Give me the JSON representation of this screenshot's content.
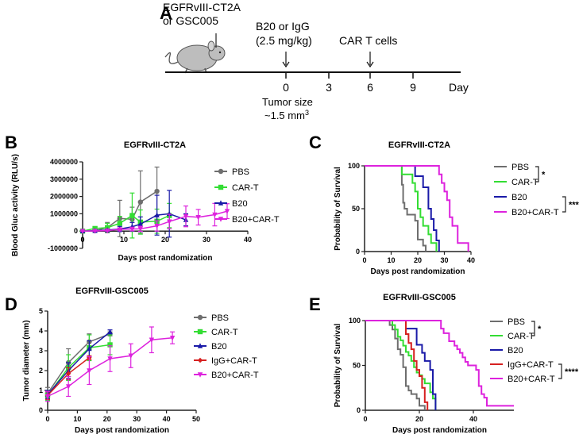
{
  "panel_a": {
    "label": "A",
    "tumor_line1": "EGFRvIII-CT2A",
    "tumor_line2": "or GSC005",
    "treat1_line1": "B20 or IgG",
    "treat1_line2": "(2.5 mg/kg)",
    "treat2": "CAR T cells",
    "ticks": [
      "0",
      "3",
      "6",
      "9"
    ],
    "day_label": "Day",
    "size_line1": "Tumor size",
    "size_line2": "~1.5 mm",
    "size_sup": "3"
  },
  "colors": {
    "PBS": "#6e6e6e",
    "CAR-T": "#33dd33",
    "B20": "#1a1aa8",
    "IgG+CAR-T": "#d62020",
    "B20+CAR-T": "#dd22dd"
  },
  "chart_data": [
    {
      "panel": "B",
      "type": "line",
      "title": "EGFRvIII-CT2A",
      "xlabel": "Days post randomization",
      "ylabel": "Blood Gluc activity (RLU/s)",
      "xlim": [
        0,
        40
      ],
      "ylim": [
        -1000000,
        4000000
      ],
      "xticks": [
        "0",
        "10",
        "20",
        "30",
        "40"
      ],
      "yticks": [
        "-1000000",
        "0",
        "1000000",
        "2000000",
        "3000000",
        "4000000"
      ],
      "legend_position": "right",
      "series": [
        {
          "name": "PBS",
          "marker": "circle",
          "x": [
            0,
            3,
            6,
            9,
            12,
            14,
            18
          ],
          "y": [
            0,
            20000,
            200000,
            730000,
            680000,
            1680000,
            2300000
          ],
          "err": [
            20000,
            80000,
            300000,
            1050000,
            700000,
            1800000,
            1400000
          ]
        },
        {
          "name": "CAR-T",
          "marker": "square",
          "x": [
            0,
            3,
            6,
            9,
            12,
            14,
            18,
            21
          ],
          "y": [
            0,
            150000,
            200000,
            450000,
            900000,
            520000,
            570000,
            900000
          ],
          "err": [
            20000,
            100000,
            250000,
            400000,
            1300000,
            700000,
            700000,
            700000
          ]
        },
        {
          "name": "B20",
          "marker": "triangle-up",
          "x": [
            0,
            3,
            6,
            9,
            12,
            14,
            18,
            21,
            25
          ],
          "y": [
            0,
            20000,
            60000,
            120000,
            250000,
            400000,
            920000,
            1000000,
            650000
          ],
          "err": [
            20000,
            40000,
            60000,
            150000,
            250000,
            420000,
            1150000,
            1350000,
            350000
          ]
        },
        {
          "name": "B20+CAR-T",
          "marker": "triangle-down",
          "x": [
            0,
            3,
            6,
            9,
            12,
            14,
            18,
            21,
            25,
            28,
            32,
            35
          ],
          "y": [
            0,
            10000,
            30000,
            100000,
            120000,
            130000,
            300000,
            550000,
            850000,
            800000,
            950000,
            1150000
          ],
          "err": [
            10000,
            20000,
            30000,
            80000,
            100000,
            150000,
            300000,
            420000,
            600000,
            450000,
            650000,
            430000
          ]
        }
      ]
    },
    {
      "panel": "C",
      "type": "line",
      "subtype": "kaplan-meier",
      "title": "EGFRvIII-CT2A",
      "xlabel": "Days post randomization",
      "ylabel": "Probability of Survival",
      "xlim": [
        0,
        40
      ],
      "ylim": [
        0,
        100
      ],
      "xticks": [
        "0",
        "10",
        "20",
        "30",
        "40"
      ],
      "yticks": [
        "0",
        "50",
        "100"
      ],
      "legend_position": "right",
      "significance": [
        {
          "groups": [
            "PBS",
            "CAR-T"
          ],
          "label": "*"
        },
        {
          "groups": [
            "B20",
            "B20+CAR-T"
          ],
          "label": "****"
        }
      ],
      "series": [
        {
          "name": "PBS",
          "x": [
            0,
            14,
            14.5,
            15,
            16,
            19,
            20,
            22,
            23
          ],
          "y": [
            100,
            78,
            57,
            50,
            43,
            36,
            14,
            7,
            0
          ]
        },
        {
          "name": "CAR-T",
          "x": [
            0,
            14,
            18,
            19,
            20,
            21,
            22,
            24,
            25,
            27
          ],
          "y": [
            100,
            90,
            80,
            70,
            50,
            40,
            30,
            20,
            10,
            0
          ]
        },
        {
          "name": "B20",
          "x": [
            0,
            19,
            22,
            24,
            25,
            26,
            27,
            28
          ],
          "y": [
            100,
            88,
            75,
            50,
            38,
            25,
            13,
            0
          ]
        },
        {
          "name": "B20+CAR-T",
          "x": [
            0,
            28,
            29,
            30,
            31,
            32,
            33,
            35,
            39
          ],
          "y": [
            100,
            90,
            80,
            70,
            60,
            40,
            30,
            10,
            0
          ]
        }
      ]
    },
    {
      "panel": "D",
      "type": "line",
      "title": "EGFRvIII-GSC005",
      "xlabel": "Days post randomization",
      "ylabel": "Tumor diameter (mm)",
      "xlim": [
        0,
        50
      ],
      "ylim": [
        0,
        5
      ],
      "xticks": [
        "0",
        "10",
        "20",
        "30",
        "40",
        "50"
      ],
      "yticks": [
        "0",
        "1",
        "2",
        "3",
        "4",
        "5"
      ],
      "legend_position": "right",
      "series": [
        {
          "name": "PBS",
          "marker": "circle",
          "x": [
            0,
            7,
            14,
            21
          ],
          "y": [
            0.85,
            2.4,
            3.45,
            3.85
          ],
          "err": [
            0.3,
            0.7,
            0.4,
            0.1
          ]
        },
        {
          "name": "CAR-T",
          "marker": "square",
          "x": [
            0,
            7,
            14,
            21
          ],
          "y": [
            0.75,
            2.15,
            3.15,
            3.3
          ],
          "err": [
            0.25,
            0.65,
            0.65,
            0.5
          ]
        },
        {
          "name": "B20",
          "marker": "triangle-up",
          "x": [
            0,
            7,
            14,
            21
          ],
          "y": [
            0.8,
            2.0,
            3.1,
            3.95
          ],
          "err": [
            0.2,
            0.4,
            0.4,
            0.1
          ]
        },
        {
          "name": "IgG+CAR-T",
          "marker": "diamond",
          "x": [
            0,
            7,
            14
          ],
          "y": [
            0.75,
            1.85,
            2.65
          ],
          "err": [
            0.2,
            0.3,
            0.1
          ]
        },
        {
          "name": "B20+CAR-T",
          "marker": "triangle-down",
          "x": [
            0,
            7,
            14,
            21,
            28,
            35,
            42
          ],
          "y": [
            0.7,
            1.2,
            2.0,
            2.6,
            2.75,
            3.55,
            3.65
          ],
          "err": [
            0.25,
            0.5,
            0.7,
            0.65,
            0.6,
            0.65,
            0.3
          ]
        }
      ]
    },
    {
      "panel": "E",
      "type": "line",
      "subtype": "kaplan-meier",
      "title": "EGFRvIII-GSC005",
      "xlabel": "Days post randomization",
      "ylabel": "Probability of Survival",
      "xlim": [
        0,
        55
      ],
      "ylim": [
        0,
        100
      ],
      "xticks": [
        "0",
        "20",
        "40"
      ],
      "yticks": [
        "0",
        "50",
        "100"
      ],
      "legend_position": "right",
      "significance": [
        {
          "groups": [
            "PBS",
            "CAR-T"
          ],
          "label": "*"
        },
        {
          "groups": [
            "IgG+CAR-T",
            "B20+CAR-T"
          ],
          "label": "****"
        }
      ],
      "series": [
        {
          "name": "PBS",
          "x": [
            0,
            9,
            10,
            11,
            12,
            13,
            14,
            15,
            16,
            17,
            19,
            20,
            22
          ],
          "y": [
            100,
            95,
            90,
            80,
            68,
            62,
            48,
            27,
            22,
            18,
            13,
            5,
            0
          ]
        },
        {
          "name": "CAR-T",
          "x": [
            0,
            10,
            11,
            12,
            13,
            14,
            15,
            16,
            17,
            18,
            19,
            20,
            21,
            22,
            24,
            25,
            26
          ],
          "y": [
            100,
            95,
            90,
            82,
            78,
            72,
            65,
            61,
            55,
            48,
            42,
            39,
            35,
            30,
            20,
            13,
            0
          ]
        },
        {
          "name": "B20",
          "x": [
            0,
            15,
            19,
            21,
            22,
            24,
            25,
            26
          ],
          "y": [
            100,
            91,
            73,
            64,
            55,
            45,
            18,
            0
          ]
        },
        {
          "name": "IgG+CAR-T",
          "x": [
            0,
            15,
            16,
            17,
            18,
            19,
            20,
            21,
            22,
            23
          ],
          "y": [
            100,
            85,
            75,
            68,
            55,
            45,
            38,
            25,
            9,
            0
          ]
        },
        {
          "name": "B20+CAR-T",
          "x": [
            0,
            28,
            29,
            31,
            33,
            34,
            35,
            36,
            37,
            38,
            41,
            42,
            43,
            44,
            45,
            55
          ],
          "y": [
            100,
            91,
            86,
            77,
            72,
            68,
            64,
            59,
            54,
            50,
            45,
            27,
            18,
            14,
            5,
            5
          ]
        }
      ]
    }
  ]
}
